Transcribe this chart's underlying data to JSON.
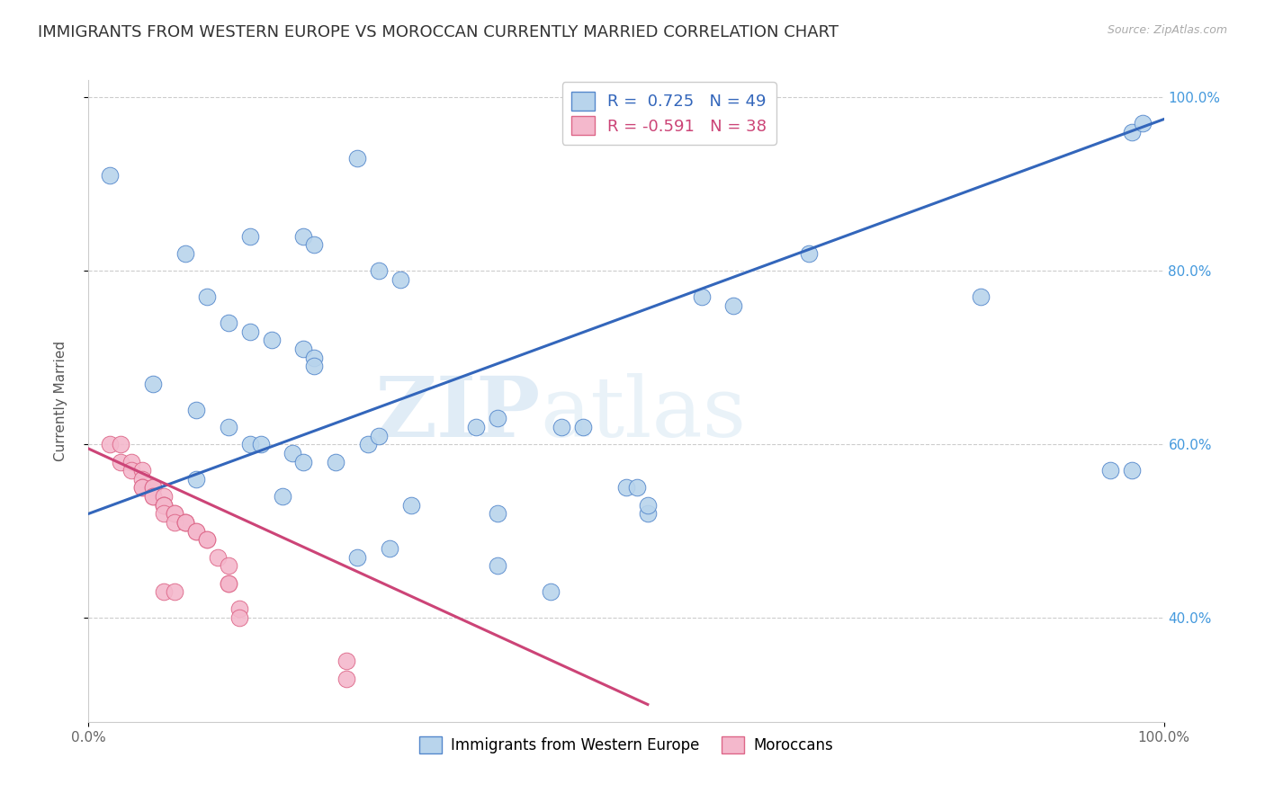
{
  "title": "IMMIGRANTS FROM WESTERN EUROPE VS MOROCCAN CURRENTLY MARRIED CORRELATION CHART",
  "source": "Source: ZipAtlas.com",
  "ylabel": "Currently Married",
  "watermark_zip": "ZIP",
  "watermark_atlas": "atlas",
  "legend_r1": "R =  0.725",
  "legend_n1": "N = 49",
  "legend_r2": "R = -0.591",
  "legend_n2": "N = 38",
  "blue_color": "#b8d4ec",
  "blue_edge_color": "#5588cc",
  "blue_line_color": "#3366bb",
  "pink_color": "#f4b8cc",
  "pink_edge_color": "#dd6688",
  "pink_line_color": "#cc4477",
  "blue_scatter": [
    [
      0.02,
      0.91
    ],
    [
      0.25,
      0.93
    ],
    [
      0.09,
      0.82
    ],
    [
      0.15,
      0.84
    ],
    [
      0.2,
      0.84
    ],
    [
      0.21,
      0.83
    ],
    [
      0.27,
      0.8
    ],
    [
      0.29,
      0.79
    ],
    [
      0.11,
      0.77
    ],
    [
      0.13,
      0.74
    ],
    [
      0.15,
      0.73
    ],
    [
      0.17,
      0.72
    ],
    [
      0.2,
      0.71
    ],
    [
      0.21,
      0.7
    ],
    [
      0.21,
      0.69
    ],
    [
      0.06,
      0.67
    ],
    [
      0.1,
      0.64
    ],
    [
      0.13,
      0.62
    ],
    [
      0.15,
      0.6
    ],
    [
      0.16,
      0.6
    ],
    [
      0.19,
      0.59
    ],
    [
      0.2,
      0.58
    ],
    [
      0.23,
      0.58
    ],
    [
      0.26,
      0.6
    ],
    [
      0.27,
      0.61
    ],
    [
      0.36,
      0.62
    ],
    [
      0.38,
      0.63
    ],
    [
      0.44,
      0.62
    ],
    [
      0.46,
      0.62
    ],
    [
      0.1,
      0.56
    ],
    [
      0.18,
      0.54
    ],
    [
      0.3,
      0.53
    ],
    [
      0.38,
      0.52
    ],
    [
      0.5,
      0.55
    ],
    [
      0.51,
      0.55
    ],
    [
      0.57,
      0.77
    ],
    [
      0.67,
      0.82
    ],
    [
      0.95,
      0.57
    ],
    [
      0.97,
      0.57
    ],
    [
      0.25,
      0.47
    ],
    [
      0.38,
      0.46
    ],
    [
      0.43,
      0.43
    ],
    [
      0.52,
      0.52
    ],
    [
      0.52,
      0.53
    ],
    [
      0.6,
      0.76
    ],
    [
      0.83,
      0.77
    ],
    [
      0.97,
      0.96
    ],
    [
      0.98,
      0.97
    ],
    [
      0.28,
      0.48
    ]
  ],
  "pink_scatter": [
    [
      0.02,
      0.6
    ],
    [
      0.03,
      0.6
    ],
    [
      0.03,
      0.58
    ],
    [
      0.04,
      0.58
    ],
    [
      0.04,
      0.57
    ],
    [
      0.05,
      0.57
    ],
    [
      0.05,
      0.56
    ],
    [
      0.05,
      0.55
    ],
    [
      0.05,
      0.55
    ],
    [
      0.06,
      0.55
    ],
    [
      0.06,
      0.55
    ],
    [
      0.06,
      0.54
    ],
    [
      0.06,
      0.54
    ],
    [
      0.07,
      0.54
    ],
    [
      0.07,
      0.53
    ],
    [
      0.07,
      0.53
    ],
    [
      0.07,
      0.53
    ],
    [
      0.07,
      0.52
    ],
    [
      0.08,
      0.52
    ],
    [
      0.08,
      0.52
    ],
    [
      0.08,
      0.51
    ],
    [
      0.09,
      0.51
    ],
    [
      0.09,
      0.51
    ],
    [
      0.09,
      0.51
    ],
    [
      0.1,
      0.5
    ],
    [
      0.1,
      0.5
    ],
    [
      0.11,
      0.49
    ],
    [
      0.11,
      0.49
    ],
    [
      0.12,
      0.47
    ],
    [
      0.13,
      0.46
    ],
    [
      0.13,
      0.44
    ],
    [
      0.13,
      0.44
    ],
    [
      0.07,
      0.43
    ],
    [
      0.08,
      0.43
    ],
    [
      0.14,
      0.41
    ],
    [
      0.14,
      0.4
    ],
    [
      0.24,
      0.35
    ],
    [
      0.24,
      0.33
    ]
  ],
  "blue_line_x": [
    0.0,
    1.0
  ],
  "blue_line_y": [
    0.52,
    0.975
  ],
  "pink_line_x": [
    0.0,
    0.52
  ],
  "pink_line_y": [
    0.595,
    0.3
  ],
  "xlim": [
    0.0,
    1.0
  ],
  "ylim": [
    0.28,
    1.02
  ],
  "yticks": [
    0.4,
    0.6,
    0.8,
    1.0
  ],
  "ytick_labels_right": [
    "40.0%",
    "60.0%",
    "80.0%",
    "100.0%"
  ],
  "xtick_labels": [
    "0.0%",
    "100.0%"
  ],
  "background_color": "#ffffff",
  "grid_color": "#cccccc",
  "title_fontsize": 13,
  "axis_label_fontsize": 11,
  "marker_size": 180
}
